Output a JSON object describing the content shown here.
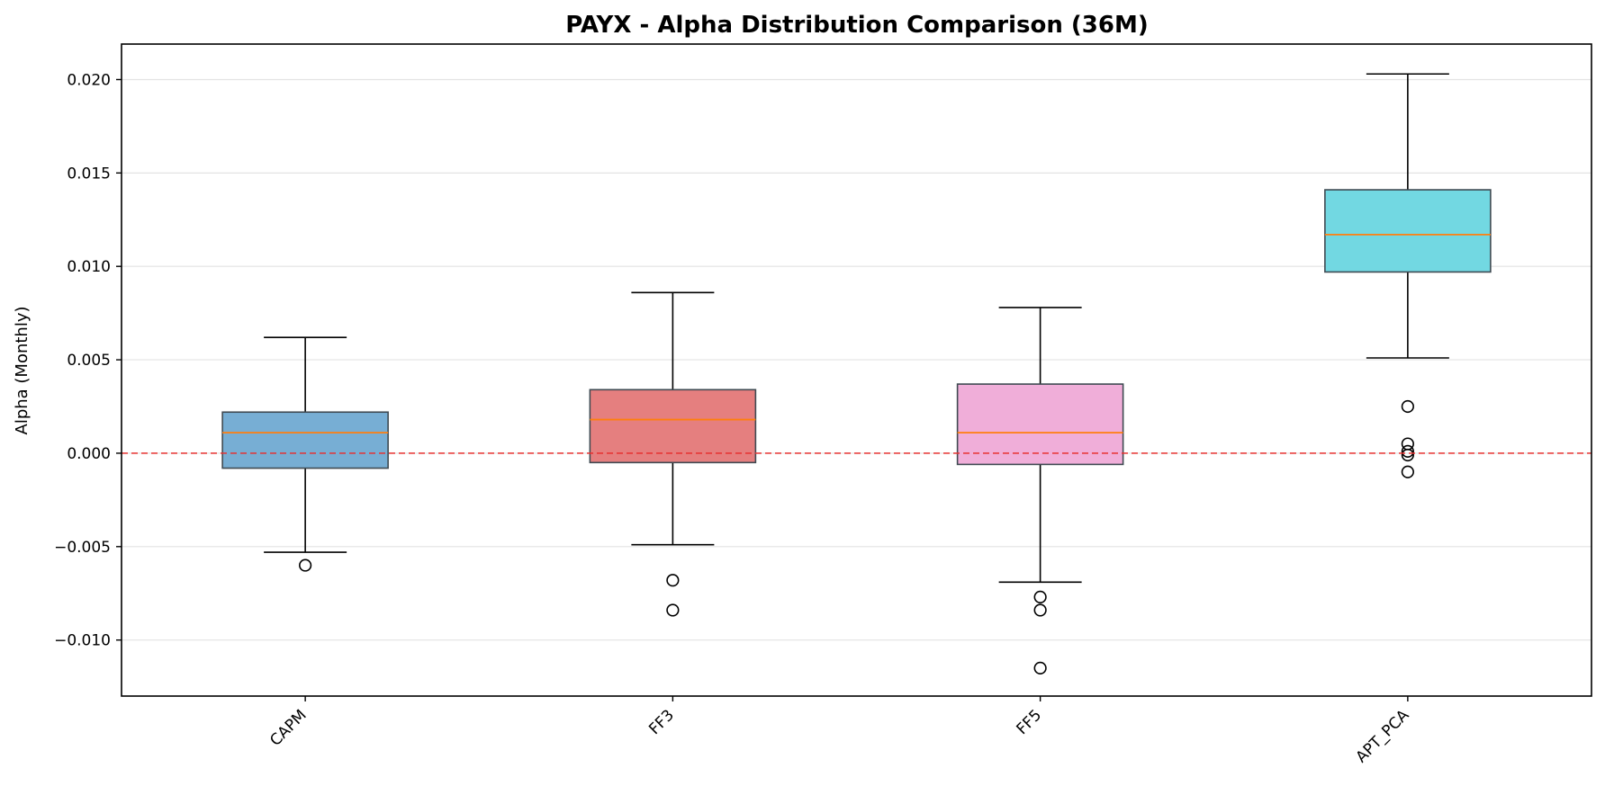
{
  "chart_data": {
    "type": "boxplot",
    "title": "PAYX - Alpha Distribution Comparison (36M)",
    "xlabel": "",
    "ylabel": "Alpha (Monthly)",
    "ylim": [
      -0.013,
      0.0219
    ],
    "yticks": [
      -0.01,
      -0.005,
      0.0,
      0.005,
      0.01,
      0.015,
      0.02
    ],
    "ytick_labels": [
      "−0.010",
      "−0.005",
      "0.000",
      "0.005",
      "0.010",
      "0.015",
      "0.020"
    ],
    "grid": "horizontal",
    "reference_line": {
      "y": 0.0,
      "color": "#e8302f",
      "style": "dashed"
    },
    "median_color": "#ff7f0e",
    "categories": [
      "CAPM",
      "FF3",
      "FF5",
      "APT_PCA"
    ],
    "boxes": [
      {
        "label": "CAPM",
        "color": "#77aed4",
        "whisker_low": -0.0053,
        "q1": -0.0008,
        "median": 0.0011,
        "q3": 0.0022,
        "whisker_high": 0.0062,
        "outliers": [
          -0.006
        ]
      },
      {
        "label": "FF3",
        "color": "#e57f7f",
        "whisker_low": -0.0049,
        "q1": -0.0005,
        "median": 0.0018,
        "q3": 0.0034,
        "whisker_high": 0.0086,
        "outliers": [
          -0.0068,
          -0.0084
        ]
      },
      {
        "label": "FF5",
        "color": "#f0aed9",
        "whisker_low": -0.0069,
        "q1": -0.0006,
        "median": 0.0011,
        "q3": 0.0037,
        "whisker_high": 0.0078,
        "outliers": [
          -0.0077,
          -0.0084,
          -0.0115
        ]
      },
      {
        "label": "APT_PCA",
        "color": "#72d8e2",
        "whisker_low": 0.0051,
        "q1": 0.0097,
        "median": 0.0117,
        "q3": 0.0141,
        "whisker_high": 0.0203,
        "outliers": [
          0.0025,
          0.0005,
          0.0001,
          -0.0001,
          -0.001
        ]
      }
    ]
  }
}
